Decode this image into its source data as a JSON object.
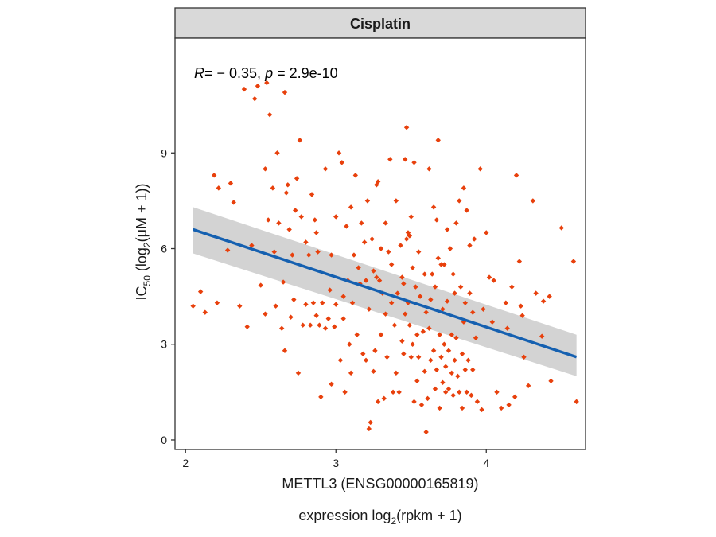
{
  "chart_data": {
    "type": "scatter",
    "facet_title": "Cisplatin",
    "annotation": {
      "r_label": "R",
      "r_value": "= − 0.35, ",
      "p_label": "p",
      "p_value": " = 2.9e-10"
    },
    "xlabel_line1": "METTL3 (ENSG00000165819)",
    "xlabel_line2_prefix": "expression log",
    "xlabel_line2_sub": "2",
    "xlabel_line2_suffix": "(rpkm + 1)",
    "ylabel_prefix": "IC",
    "ylabel_sub": "50",
    "ylabel_mid": " (log",
    "ylabel_sub2": "2",
    "ylabel_suffix": "(μM + 1))",
    "xlim": [
      1.93,
      4.66
    ],
    "ylim": [
      -0.3,
      12.6
    ],
    "x_ticks": [
      2,
      3,
      4
    ],
    "x_tick_labels": [
      "2",
      "3",
      "4"
    ],
    "y_ticks": [
      0,
      3,
      6,
      9
    ],
    "y_tick_labels": [
      "0",
      "3",
      "6",
      "9"
    ],
    "grid": false,
    "colors": {
      "points": "#e8400c",
      "line": "#1560b0",
      "band": "#d3d3d3",
      "strip": "#d9d9d9",
      "frame": "#333333"
    },
    "fit": {
      "x": [
        2.05,
        4.6
      ],
      "y": [
        6.6,
        2.6
      ],
      "band_lower": [
        5.85,
        2.0
      ],
      "band_upper": [
        7.3,
        3.3
      ]
    },
    "points": [
      [
        2.05,
        4.2
      ],
      [
        2.1,
        4.65
      ],
      [
        2.13,
        4.0
      ],
      [
        2.19,
        8.3
      ],
      [
        2.21,
        4.3
      ],
      [
        2.22,
        7.9
      ],
      [
        2.28,
        5.95
      ],
      [
        2.3,
        8.05
      ],
      [
        2.32,
        7.45
      ],
      [
        2.36,
        4.2
      ],
      [
        2.39,
        11.0
      ],
      [
        2.41,
        3.55
      ],
      [
        2.44,
        6.1
      ],
      [
        2.46,
        10.7
      ],
      [
        2.48,
        11.1
      ],
      [
        2.5,
        4.85
      ],
      [
        2.53,
        8.5
      ],
      [
        2.53,
        3.95
      ],
      [
        2.54,
        11.2
      ],
      [
        2.55,
        6.9
      ],
      [
        2.56,
        10.2
      ],
      [
        2.58,
        7.9
      ],
      [
        2.59,
        5.9
      ],
      [
        2.6,
        4.2
      ],
      [
        2.61,
        9.0
      ],
      [
        2.62,
        6.8
      ],
      [
        2.64,
        3.5
      ],
      [
        2.65,
        4.95
      ],
      [
        2.66,
        2.8
      ],
      [
        2.66,
        10.9
      ],
      [
        2.67,
        7.75
      ],
      [
        2.68,
        8.0
      ],
      [
        2.69,
        6.6
      ],
      [
        2.7,
        3.85
      ],
      [
        2.71,
        5.8
      ],
      [
        2.72,
        4.4
      ],
      [
        2.73,
        7.2
      ],
      [
        2.74,
        8.2
      ],
      [
        2.75,
        2.1
      ],
      [
        2.76,
        9.4
      ],
      [
        2.77,
        7.0
      ],
      [
        2.78,
        3.6
      ],
      [
        2.8,
        4.25
      ],
      [
        2.8,
        6.2
      ],
      [
        2.82,
        5.8
      ],
      [
        2.83,
        3.6
      ],
      [
        2.84,
        7.7
      ],
      [
        2.85,
        4.3
      ],
      [
        2.86,
        6.9
      ],
      [
        2.87,
        3.9
      ],
      [
        2.87,
        6.5
      ],
      [
        2.88,
        5.9
      ],
      [
        2.89,
        3.6
      ],
      [
        2.9,
        1.35
      ],
      [
        2.91,
        4.3
      ],
      [
        2.93,
        3.5
      ],
      [
        2.93,
        8.5
      ],
      [
        2.95,
        3.8
      ],
      [
        2.96,
        4.7
      ],
      [
        2.97,
        1.75
      ],
      [
        2.97,
        5.8
      ],
      [
        2.99,
        3.55
      ],
      [
        3.0,
        7.0
      ],
      [
        3.0,
        4.25
      ],
      [
        3.02,
        9.0
      ],
      [
        3.03,
        2.5
      ],
      [
        3.04,
        8.7
      ],
      [
        3.05,
        4.5
      ],
      [
        3.05,
        3.8
      ],
      [
        3.06,
        1.5
      ],
      [
        3.07,
        6.7
      ],
      [
        3.08,
        5.0
      ],
      [
        3.09,
        3.0
      ],
      [
        3.1,
        7.3
      ],
      [
        3.1,
        2.1
      ],
      [
        3.11,
        4.3
      ],
      [
        3.12,
        5.8
      ],
      [
        3.13,
        8.3
      ],
      [
        3.14,
        3.3
      ],
      [
        3.15,
        5.4
      ],
      [
        3.16,
        4.9
      ],
      [
        3.17,
        6.8
      ],
      [
        3.18,
        2.7
      ],
      [
        3.19,
        6.2
      ],
      [
        3.2,
        5.0
      ],
      [
        3.2,
        2.5
      ],
      [
        3.21,
        7.5
      ],
      [
        3.22,
        4.1
      ],
      [
        3.22,
        0.35
      ],
      [
        3.23,
        0.55
      ],
      [
        3.24,
        6.3
      ],
      [
        3.25,
        5.3
      ],
      [
        3.25,
        2.15
      ],
      [
        3.26,
        2.8
      ],
      [
        3.27,
        8.0
      ],
      [
        3.27,
        5.1
      ],
      [
        3.28,
        8.1
      ],
      [
        3.28,
        1.2
      ],
      [
        3.29,
        5.0
      ],
      [
        3.3,
        6.0
      ],
      [
        3.3,
        3.3
      ],
      [
        3.31,
        4.6
      ],
      [
        3.32,
        1.3
      ],
      [
        3.33,
        6.8
      ],
      [
        3.33,
        3.95
      ],
      [
        3.34,
        2.6
      ],
      [
        3.35,
        5.9
      ],
      [
        3.36,
        8.8
      ],
      [
        3.37,
        5.5
      ],
      [
        3.37,
        4.3
      ],
      [
        3.38,
        1.5
      ],
      [
        3.39,
        3.6
      ],
      [
        3.4,
        7.5
      ],
      [
        3.4,
        2.1
      ],
      [
        3.41,
        4.6
      ],
      [
        3.42,
        1.5
      ],
      [
        3.43,
        6.1
      ],
      [
        3.44,
        5.1
      ],
      [
        3.44,
        3.1
      ],
      [
        3.45,
        2.7
      ],
      [
        3.45,
        4.9
      ],
      [
        3.46,
        8.8
      ],
      [
        3.46,
        3.95
      ],
      [
        3.47,
        9.8
      ],
      [
        3.47,
        6.3
      ],
      [
        3.48,
        6.5
      ],
      [
        3.48,
        4.3
      ],
      [
        3.49,
        6.4
      ],
      [
        3.49,
        3.6
      ],
      [
        3.5,
        7.0
      ],
      [
        3.5,
        2.6
      ],
      [
        3.51,
        5.4
      ],
      [
        3.51,
        3.0
      ],
      [
        3.52,
        8.7
      ],
      [
        3.52,
        1.2
      ],
      [
        3.53,
        4.8
      ],
      [
        3.54,
        3.3
      ],
      [
        3.54,
        1.85
      ],
      [
        3.55,
        5.9
      ],
      [
        3.55,
        2.6
      ],
      [
        3.56,
        4.5
      ],
      [
        3.57,
        1.1
      ],
      [
        3.58,
        3.4
      ],
      [
        3.59,
        5.2
      ],
      [
        3.59,
        2.15
      ],
      [
        3.6,
        4.0
      ],
      [
        3.6,
        0.25
      ],
      [
        3.61,
        1.3
      ],
      [
        3.62,
        8.5
      ],
      [
        3.62,
        3.5
      ],
      [
        3.63,
        4.4
      ],
      [
        3.63,
        2.5
      ],
      [
        3.64,
        5.2
      ],
      [
        3.65,
        7.3
      ],
      [
        3.65,
        2.8
      ],
      [
        3.66,
        1.6
      ],
      [
        3.66,
        4.8
      ],
      [
        3.67,
        6.9
      ],
      [
        3.67,
        2.2
      ],
      [
        3.68,
        9.4
      ],
      [
        3.68,
        5.7
      ],
      [
        3.69,
        3.3
      ],
      [
        3.69,
        1.0
      ],
      [
        3.7,
        5.5
      ],
      [
        3.7,
        2.6
      ],
      [
        3.71,
        4.1
      ],
      [
        3.71,
        1.8
      ],
      [
        3.72,
        5.5
      ],
      [
        3.72,
        3.0
      ],
      [
        3.73,
        2.3
      ],
      [
        3.73,
        1.5
      ],
      [
        3.74,
        6.6
      ],
      [
        3.74,
        4.35
      ],
      [
        3.75,
        2.8
      ],
      [
        3.75,
        1.6
      ],
      [
        3.76,
        6.0
      ],
      [
        3.77,
        3.3
      ],
      [
        3.77,
        2.1
      ],
      [
        3.78,
        5.2
      ],
      [
        3.78,
        1.4
      ],
      [
        3.79,
        4.6
      ],
      [
        3.79,
        2.5
      ],
      [
        3.8,
        6.8
      ],
      [
        3.8,
        3.2
      ],
      [
        3.81,
        2.0
      ],
      [
        3.82,
        7.5
      ],
      [
        3.82,
        1.5
      ],
      [
        3.83,
        4.8
      ],
      [
        3.84,
        2.7
      ],
      [
        3.84,
        1.0
      ],
      [
        3.85,
        7.9
      ],
      [
        3.85,
        3.7
      ],
      [
        3.86,
        4.3
      ],
      [
        3.86,
        2.2
      ],
      [
        3.87,
        7.2
      ],
      [
        3.87,
        1.5
      ],
      [
        3.88,
        2.5
      ],
      [
        3.89,
        6.1
      ],
      [
        3.89,
        4.6
      ],
      [
        3.9,
        1.4
      ],
      [
        3.91,
        4.0
      ],
      [
        3.91,
        2.2
      ],
      [
        3.92,
        6.3
      ],
      [
        3.93,
        3.2
      ],
      [
        3.94,
        1.2
      ],
      [
        3.96,
        8.5
      ],
      [
        3.97,
        0.95
      ],
      [
        3.98,
        4.1
      ],
      [
        4.0,
        6.5
      ],
      [
        4.02,
        5.1
      ],
      [
        4.04,
        3.7
      ],
      [
        4.05,
        5.0
      ],
      [
        4.07,
        1.5
      ],
      [
        4.1,
        1.0
      ],
      [
        4.13,
        4.3
      ],
      [
        4.14,
        3.5
      ],
      [
        4.15,
        1.1
      ],
      [
        4.17,
        4.8
      ],
      [
        4.19,
        1.35
      ],
      [
        4.2,
        8.3
      ],
      [
        4.22,
        5.6
      ],
      [
        4.23,
        4.2
      ],
      [
        4.24,
        3.9
      ],
      [
        4.25,
        2.6
      ],
      [
        4.28,
        1.7
      ],
      [
        4.31,
        7.5
      ],
      [
        4.33,
        4.6
      ],
      [
        4.37,
        3.25
      ],
      [
        4.38,
        4.35
      ],
      [
        4.42,
        4.5
      ],
      [
        4.43,
        1.85
      ],
      [
        4.5,
        6.65
      ],
      [
        4.58,
        5.6
      ],
      [
        4.6,
        1.2
      ]
    ]
  }
}
